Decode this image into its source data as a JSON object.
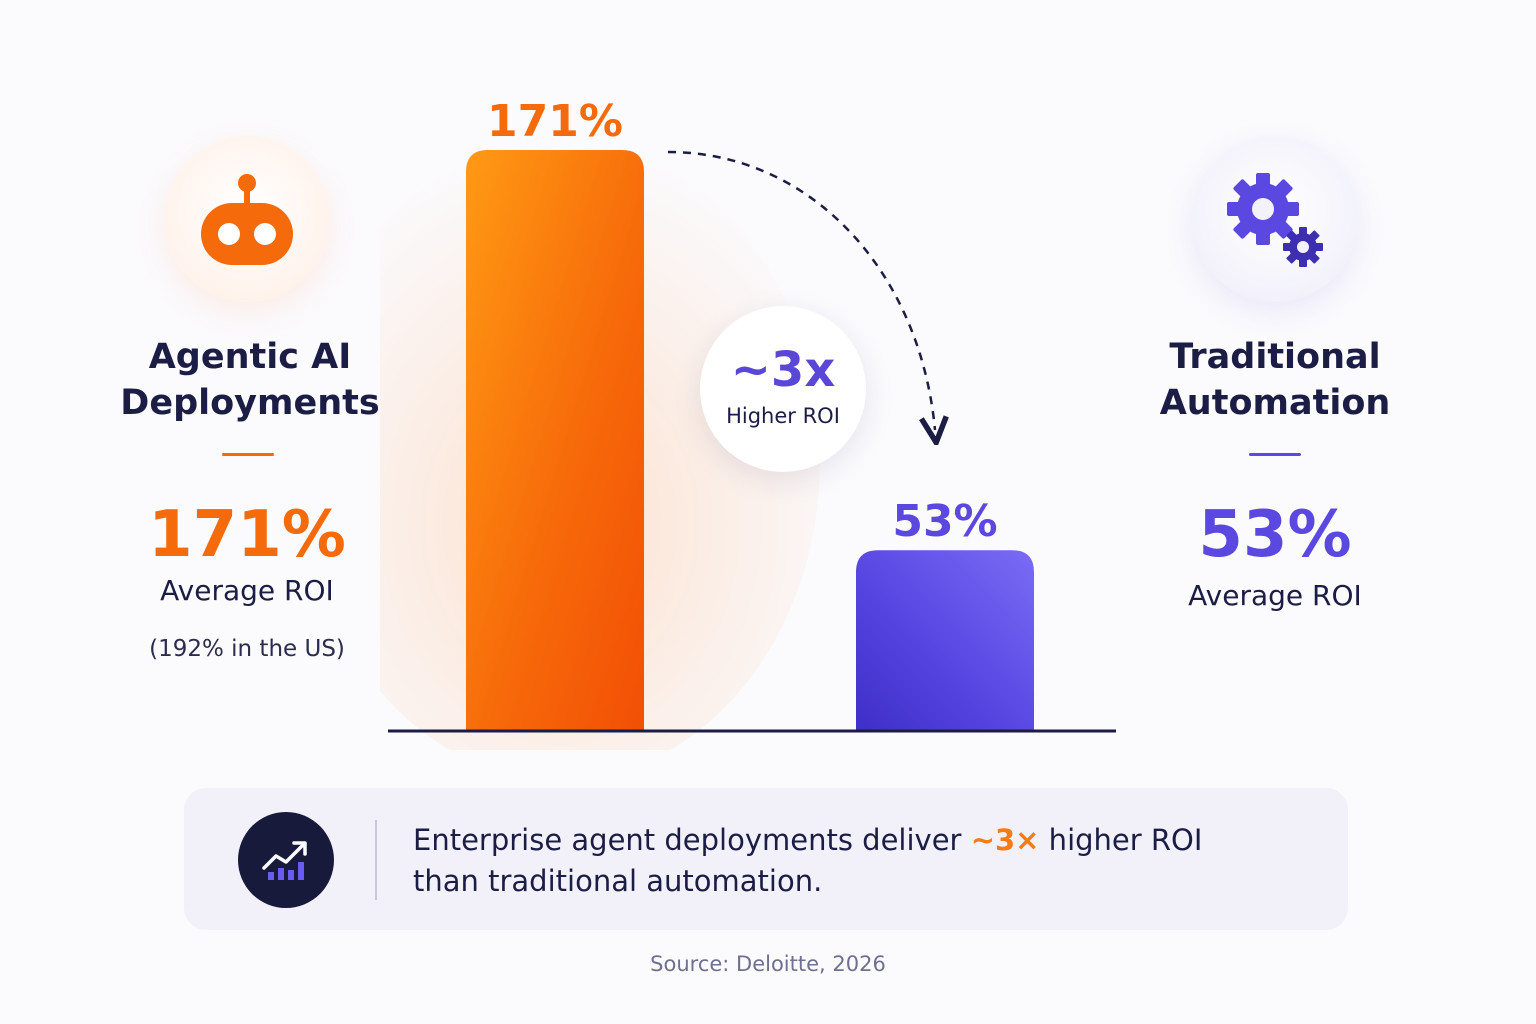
{
  "colors": {
    "agentic": "#f56a0a",
    "traditional": "#5b48e0",
    "dark": "#1b1d45",
    "accent_highlight": "#f47b16"
  },
  "left": {
    "icon": "robot-icon",
    "title_line1": "Agentic AI",
    "title_line2": "Deployments",
    "value": "171%",
    "label": "Average ROI",
    "note": "(192% in the US)"
  },
  "right": {
    "icon": "gears-icon",
    "title_line1": "Traditional",
    "title_line2": "Automation",
    "value": "53%",
    "label": "Average ROI"
  },
  "badge": {
    "big": "~3x",
    "small": "Higher ROI"
  },
  "chart_data": {
    "type": "bar",
    "categories": [
      "Agentic AI Deployments",
      "Traditional Automation"
    ],
    "values": [
      171,
      53
    ],
    "data_labels": [
      "171%",
      "53%"
    ],
    "colors": [
      "#f56a0a",
      "#5b48e0"
    ],
    "ylim": [
      0,
      171
    ],
    "grid": false,
    "annotation": "~3x Higher ROI"
  },
  "panel": {
    "icon": "trending-up-chart-icon",
    "text_before": "Enterprise agent deployments deliver ",
    "highlight": "~3×",
    "text_after": " higher ROI",
    "line2": "than traditional automation."
  },
  "source": "Source: Deloitte, 2026"
}
